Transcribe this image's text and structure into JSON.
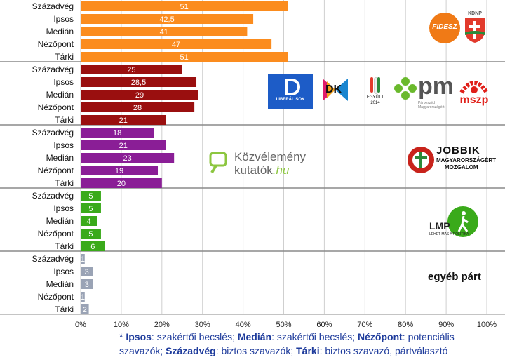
{
  "chart_data": {
    "type": "bar",
    "orientation": "horizontal",
    "xlim": [
      0,
      100
    ],
    "x_ticks": [
      "0%",
      "10%",
      "20%",
      "30%",
      "40%",
      "50%",
      "60%",
      "70%",
      "80%",
      "90%",
      "100%"
    ],
    "grid": true,
    "groups": [
      {
        "party": "Fidesz-KDNP",
        "color": "#fb8c1e",
        "categories": [
          "Századvég",
          "Ipsos",
          "Medián",
          "Nézőpont",
          "Tárki"
        ],
        "values": [
          51,
          42.5,
          41,
          47,
          51
        ],
        "value_labels": [
          "51",
          "42,5",
          "41",
          "47",
          "51"
        ]
      },
      {
        "party": "Baloldali összefogás",
        "color": "#9a0f0f",
        "categories": [
          "Századvég",
          "Ipsos",
          "Medián",
          "Nézőpont",
          "Tárki"
        ],
        "values": [
          25,
          28.5,
          29,
          28,
          21
        ],
        "value_labels": [
          "25",
          "28,5",
          "29",
          "28",
          "21"
        ]
      },
      {
        "party": "Jobbik",
        "color": "#8a1e96",
        "categories": [
          "Századvég",
          "Ipsos",
          "Medián",
          "Nézőpont",
          "Tárki"
        ],
        "values": [
          18,
          21,
          23,
          19,
          20
        ],
        "value_labels": [
          "18",
          "21",
          "23",
          "19",
          "20"
        ]
      },
      {
        "party": "LMP",
        "color": "#3aaa1a",
        "categories": [
          "Századvég",
          "Ipsos",
          "Medián",
          "Nézőpont",
          "Tárki"
        ],
        "values": [
          5,
          5,
          4,
          5,
          6
        ],
        "value_labels": [
          "5",
          "5",
          "4",
          "5",
          "6"
        ]
      },
      {
        "party": "egyéb párt",
        "color": "#9aa3b5",
        "categories": [
          "Századvég",
          "Ipsos",
          "Medián",
          "Nézőpont",
          "Tárki"
        ],
        "values": [
          1,
          3,
          3,
          1,
          2
        ],
        "value_labels": [
          "1",
          "3",
          "3",
          "1",
          "2"
        ]
      }
    ]
  },
  "logos": {
    "fidesz": "FIDESZ",
    "kdnp": "KDNP",
    "liberalisok": "LIBERÁLISOK",
    "dk": "DK",
    "egyutt": "EGYÜTT",
    "egyutt_year": "2014",
    "pm": "pm",
    "pm_sub": "Párbeszéd Magyarországért",
    "mszp": "mszp",
    "kozvelemeny_1": "Közvélemény",
    "kozvelemeny_2": "kutatók",
    "kozvelemeny_3": ".hu",
    "jobbik_1": "JOBBIK",
    "jobbik_2": "MAGYARORSZÁGÉRT",
    "jobbik_3": "MOZGALOM",
    "lmp": "LMP",
    "lmp_sub": "LEHET MÁS A POLITIKA",
    "egyeb": "egyéb párt"
  },
  "footnote": {
    "star": "* ",
    "ipsos_key": "Ipsos",
    "ipsos_val": ": szakértői becslés; ",
    "median_key": "Medián",
    "median_val": ": szakértői becslés; ",
    "nezopont_key": "Nézőpont",
    "nezopont_val": ": potenciális szavazók; ",
    "szazadveg_key": "Századvég",
    "szazadveg_val": ": biztos szavazók; ",
    "tarki_key": "Tárki",
    "tarki_val": ":  biztos szavazó, pártválasztó"
  },
  "colors": {
    "grid": "#cfcfcf",
    "separator": "#8a8a8a",
    "footnote": "#1f3c9c"
  }
}
